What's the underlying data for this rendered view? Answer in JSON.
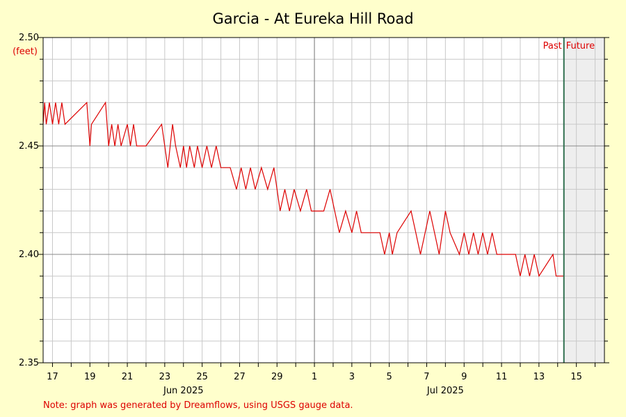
{
  "chart_data": {
    "type": "line",
    "title": "Garcia - At Eureka Hill Road",
    "ylabel": "(feet)",
    "xlabel": "",
    "ylim": [
      2.35,
      2.5
    ],
    "xlim": [
      "2025-06-16T12:00",
      "2025-07-16T12:00"
    ],
    "y_ticks": [
      "2.35",
      "2.40",
      "2.45",
      "2.50"
    ],
    "x_ticks": [
      {
        "label": "17",
        "date": "2025-06-17"
      },
      {
        "label": "19",
        "date": "2025-06-19"
      },
      {
        "label": "21",
        "date": "2025-06-21"
      },
      {
        "label": "23",
        "date": "2025-06-23"
      },
      {
        "label": "25",
        "date": "2025-06-25"
      },
      {
        "label": "27",
        "date": "2025-06-27"
      },
      {
        "label": "29",
        "date": "2025-06-29"
      },
      {
        "label": "1",
        "date": "2025-07-01"
      },
      {
        "label": "3",
        "date": "2025-07-03"
      },
      {
        "label": "5",
        "date": "2025-07-05"
      },
      {
        "label": "7",
        "date": "2025-07-07"
      },
      {
        "label": "9",
        "date": "2025-07-09"
      },
      {
        "label": "11",
        "date": "2025-07-11"
      },
      {
        "label": "13",
        "date": "2025-07-13"
      },
      {
        "label": "15",
        "date": "2025-07-15"
      }
    ],
    "month_labels": [
      {
        "label": "Jun 2025",
        "date": "2025-06-24"
      },
      {
        "label": "Jul 2025",
        "date": "2025-07-08"
      }
    ],
    "now_marker": {
      "date": "2025-07-14T08:00",
      "past_label": "Past",
      "future_label": "Future"
    },
    "grid": true,
    "series": [
      {
        "color": "#dd0000",
        "points": [
          [
            "2025-06-16T12:00",
            2.46
          ],
          [
            "2025-06-16T14:00",
            2.47
          ],
          [
            "2025-06-16T16:00",
            2.46
          ],
          [
            "2025-06-16T20:00",
            2.47
          ],
          [
            "2025-06-17T00:00",
            2.46
          ],
          [
            "2025-06-17T04:00",
            2.47
          ],
          [
            "2025-06-17T08:00",
            2.46
          ],
          [
            "2025-06-17T12:00",
            2.47
          ],
          [
            "2025-06-17T16:00",
            2.46
          ],
          [
            "2025-06-18T20:00",
            2.47
          ],
          [
            "2025-06-19T00:00",
            2.45
          ],
          [
            "2025-06-19T02:00",
            2.46
          ],
          [
            "2025-06-19T20:00",
            2.47
          ],
          [
            "2025-06-20T00:00",
            2.45
          ],
          [
            "2025-06-20T04:00",
            2.46
          ],
          [
            "2025-06-20T08:00",
            2.45
          ],
          [
            "2025-06-20T12:00",
            2.46
          ],
          [
            "2025-06-20T16:00",
            2.45
          ],
          [
            "2025-06-21T00:00",
            2.46
          ],
          [
            "2025-06-21T04:00",
            2.45
          ],
          [
            "2025-06-21T08:00",
            2.46
          ],
          [
            "2025-06-21T12:00",
            2.45
          ],
          [
            "2025-06-22T00:00",
            2.45
          ],
          [
            "2025-06-22T20:00",
            2.46
          ],
          [
            "2025-06-23T04:00",
            2.44
          ],
          [
            "2025-06-23T10:00",
            2.46
          ],
          [
            "2025-06-23T14:00",
            2.45
          ],
          [
            "2025-06-23T20:00",
            2.44
          ],
          [
            "2025-06-24T00:00",
            2.45
          ],
          [
            "2025-06-24T04:00",
            2.44
          ],
          [
            "2025-06-24T08:00",
            2.45
          ],
          [
            "2025-06-24T14:00",
            2.44
          ],
          [
            "2025-06-24T18:00",
            2.45
          ],
          [
            "2025-06-25T00:00",
            2.44
          ],
          [
            "2025-06-25T06:00",
            2.45
          ],
          [
            "2025-06-25T12:00",
            2.44
          ],
          [
            "2025-06-25T18:00",
            2.45
          ],
          [
            "2025-06-26T00:00",
            2.44
          ],
          [
            "2025-06-26T12:00",
            2.44
          ],
          [
            "2025-06-26T20:00",
            2.43
          ],
          [
            "2025-06-27T02:00",
            2.44
          ],
          [
            "2025-06-27T08:00",
            2.43
          ],
          [
            "2025-06-27T14:00",
            2.44
          ],
          [
            "2025-06-27T20:00",
            2.43
          ],
          [
            "2025-06-28T04:00",
            2.44
          ],
          [
            "2025-06-28T12:00",
            2.43
          ],
          [
            "2025-06-28T20:00",
            2.44
          ],
          [
            "2025-06-29T00:00",
            2.43
          ],
          [
            "2025-06-29T04:00",
            2.42
          ],
          [
            "2025-06-29T10:00",
            2.43
          ],
          [
            "2025-06-29T16:00",
            2.42
          ],
          [
            "2025-06-29T22:00",
            2.43
          ],
          [
            "2025-06-30T06:00",
            2.42
          ],
          [
            "2025-06-30T14:00",
            2.43
          ],
          [
            "2025-06-30T20:00",
            2.42
          ],
          [
            "2025-07-01T12:00",
            2.42
          ],
          [
            "2025-07-01T20:00",
            2.43
          ],
          [
            "2025-07-02T02:00",
            2.42
          ],
          [
            "2025-07-02T08:00",
            2.41
          ],
          [
            "2025-07-02T16:00",
            2.42
          ],
          [
            "2025-07-03T00:00",
            2.41
          ],
          [
            "2025-07-03T06:00",
            2.42
          ],
          [
            "2025-07-03T12:00",
            2.41
          ],
          [
            "2025-07-04T00:00",
            2.41
          ],
          [
            "2025-07-04T12:00",
            2.41
          ],
          [
            "2025-07-04T18:00",
            2.4
          ],
          [
            "2025-07-05T00:00",
            2.41
          ],
          [
            "2025-07-05T04:00",
            2.4
          ],
          [
            "2025-07-05T10:00",
            2.41
          ],
          [
            "2025-07-06T04:00",
            2.42
          ],
          [
            "2025-07-06T10:00",
            2.41
          ],
          [
            "2025-07-06T16:00",
            2.4
          ],
          [
            "2025-07-06T22:00",
            2.41
          ],
          [
            "2025-07-07T04:00",
            2.42
          ],
          [
            "2025-07-07T10:00",
            2.41
          ],
          [
            "2025-07-07T16:00",
            2.4
          ],
          [
            "2025-07-08T00:00",
            2.42
          ],
          [
            "2025-07-08T06:00",
            2.41
          ],
          [
            "2025-07-08T18:00",
            2.4
          ],
          [
            "2025-07-09T00:00",
            2.41
          ],
          [
            "2025-07-09T06:00",
            2.4
          ],
          [
            "2025-07-09T12:00",
            2.41
          ],
          [
            "2025-07-09T18:00",
            2.4
          ],
          [
            "2025-07-10T00:00",
            2.41
          ],
          [
            "2025-07-10T06:00",
            2.4
          ],
          [
            "2025-07-10T12:00",
            2.41
          ],
          [
            "2025-07-10T18:00",
            2.4
          ],
          [
            "2025-07-11T18:00",
            2.4
          ],
          [
            "2025-07-12T00:00",
            2.39
          ],
          [
            "2025-07-12T06:00",
            2.4
          ],
          [
            "2025-07-12T12:00",
            2.39
          ],
          [
            "2025-07-12T18:00",
            2.4
          ],
          [
            "2025-07-13T00:00",
            2.39
          ],
          [
            "2025-07-13T18:00",
            2.4
          ],
          [
            "2025-07-13T22:00",
            2.39
          ],
          [
            "2025-07-14T08:00",
            2.39
          ]
        ]
      }
    ]
  },
  "footer_note": "Note: graph was generated by Dreamflows, using USGS gauge data.",
  "colors": {
    "background": "#ffffcc",
    "plot_background": "#ffffff",
    "future_shade": "#eeeeee",
    "line": "#dd0000",
    "now_line": "#2e6e4e",
    "grid": "#c8c8c8"
  }
}
